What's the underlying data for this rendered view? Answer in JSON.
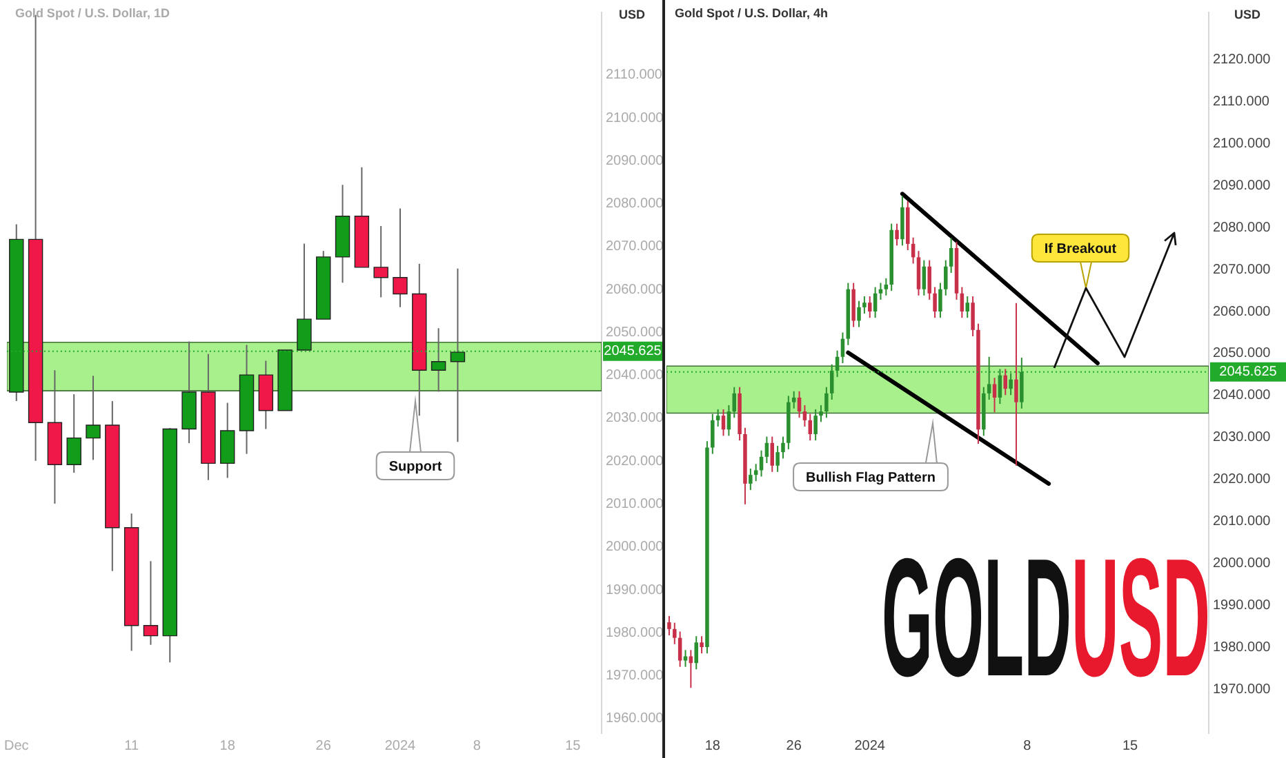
{
  "chart_data": [
    {
      "type": "candlestick",
      "title": "Gold Spot / U.S. Dollar, 1D",
      "ylabel": "USD",
      "categories": [
        "Dec",
        null,
        null,
        null,
        null,
        null,
        "11",
        null,
        null,
        null,
        null,
        "18",
        null,
        null,
        null,
        null,
        "26",
        null,
        null,
        null,
        "2024",
        null,
        null,
        null,
        "8",
        null,
        null,
        null,
        null,
        "15",
        null
      ],
      "ohlc": [
        [
          2036.1,
          2075.2,
          2034.0,
          2071.7
        ],
        [
          2071.7,
          2124.0,
          2020.1,
          2029.0
        ],
        [
          2029.0,
          2041.2,
          2010.1,
          2019.2
        ],
        [
          2019.2,
          2035.6,
          2017.3,
          2025.4
        ],
        [
          2025.4,
          2039.9,
          2020.3,
          2028.4
        ],
        [
          2028.4,
          2034.0,
          1994.4,
          2004.5
        ],
        [
          2004.5,
          2007.8,
          1975.8,
          1981.7
        ],
        [
          1981.7,
          1996.7,
          1977.2,
          1979.3
        ],
        [
          1979.3,
          2027.7,
          1973.1,
          2027.5
        ],
        [
          2027.5,
          2047.9,
          2024.2,
          2036.1
        ],
        [
          2036.1,
          2045.0,
          2015.6,
          2019.5
        ],
        [
          2019.5,
          2033.6,
          2016.1,
          2027.1
        ],
        [
          2027.1,
          2047.1,
          2021.7,
          2040.1
        ],
        [
          2040.1,
          2043.4,
          2027.5,
          2031.8
        ],
        [
          2031.8,
          2045.9,
          2031.8,
          2045.9
        ],
        [
          2045.9,
          2070.7,
          2045.9,
          2053.1
        ],
        [
          2053.1,
          2069.0,
          2053.1,
          2067.6
        ],
        [
          2067.6,
          2084.4,
          2061.6,
          2077.1
        ],
        [
          2077.1,
          2088.5,
          2065.2,
          2065.2
        ],
        [
          2065.2,
          2074.8,
          2058.2,
          2062.8
        ],
        [
          2062.8,
          2078.9,
          2055.9,
          2059.0
        ],
        [
          2059.0,
          2066.0,
          2030.6,
          2041.2
        ],
        [
          2041.2,
          2051.0,
          2036.2,
          2043.2
        ],
        [
          2043.2,
          2064.9,
          2024.5,
          2045.4
        ],
        null,
        null,
        null,
        null,
        null,
        null,
        null
      ],
      "colors": [
        "#119c19",
        "#f01848",
        "#f01848",
        "#119c19",
        "#119c19",
        "#f01848",
        "#f01848",
        "#f01848",
        "#119c19",
        "#119c19",
        "#f01848",
        "#119c19",
        "#119c19",
        "#f01848",
        "#119c19",
        "#119c19",
        "#119c19",
        "#119c19",
        "#f01848",
        "#f01848",
        "#f01848",
        "#f01848",
        "#119c19",
        "#119c19",
        null,
        null,
        null,
        null,
        null,
        null,
        null
      ],
      "ylim": [
        1956.6,
        2124.6
      ],
      "yticks": [
        {
          "value": 1960,
          "label": "1960.000"
        },
        {
          "value": 1970,
          "label": "1970.000"
        },
        {
          "value": 1980,
          "label": "1980.000"
        },
        {
          "value": 1990,
          "label": "1990.000"
        },
        {
          "value": 2000,
          "label": "2000.000"
        },
        {
          "value": 2010,
          "label": "2010.000"
        },
        {
          "value": 2020,
          "label": "2020.000"
        },
        {
          "value": 2030,
          "label": "2030.000"
        },
        {
          "value": 2040,
          "label": "2040.000"
        },
        {
          "value": 2050,
          "label": "2050.000"
        },
        {
          "value": 2060,
          "label": "2060.000"
        },
        {
          "value": 2070,
          "label": "2070.000"
        },
        {
          "value": 2080,
          "label": "2080.000"
        },
        {
          "value": 2090,
          "label": "2090.000"
        },
        {
          "value": 2100,
          "label": "2100.000"
        },
        {
          "value": 2110,
          "label": "2110.000"
        }
      ],
      "bands": [
        {
          "axis": "y",
          "from": 2036.4,
          "to": 2047.7,
          "color": "#a8f08c"
        }
      ],
      "ref_lines": [
        {
          "axis": "y",
          "value": 2045.625,
          "label": "2045.625",
          "color": "#22ab2a"
        }
      ],
      "annotations": [
        "Support"
      ],
      "grid": false,
      "legend": false
    },
    {
      "type": "candlestick",
      "title": "Gold Spot / U.S. Dollar, 4h",
      "ylabel": "USD",
      "categories": [
        null,
        null,
        null,
        null,
        null,
        null,
        null,
        null,
        "18",
        null,
        null,
        null,
        null,
        null,
        null,
        null,
        null,
        null,
        null,
        null,
        null,
        null,
        null,
        "26",
        null,
        null,
        null,
        null,
        null,
        null,
        null,
        null,
        null,
        null,
        null,
        null,
        null,
        "2024",
        null,
        null,
        null,
        null,
        null,
        null,
        null,
        null,
        null,
        null,
        null,
        null,
        null,
        null,
        null,
        null,
        null,
        null,
        null,
        null,
        null,
        null,
        null,
        null,
        null,
        null,
        null,
        null,
        "8",
        null,
        null,
        null,
        null,
        null,
        null,
        null,
        null,
        null,
        null,
        null,
        null,
        null,
        null,
        null,
        null,
        null,
        null,
        "15",
        null,
        null,
        null,
        null,
        null,
        null,
        null,
        null,
        null,
        null,
        null,
        null,
        null,
        null
      ],
      "ohlc": [
        [
          1986,
          1987.5,
          1982.9,
          1984.4
        ],
        [
          1984.4,
          1985.9,
          1980.8,
          1982.3
        ],
        [
          1982.3,
          1983.8,
          1975.4,
          1976.9
        ],
        [
          1976.9,
          1979.4,
          1975.4,
          1977.9
        ],
        [
          1977.9,
          1979.4,
          1970.4,
          1976.3
        ],
        [
          1976.3,
          1982.7,
          1974.8,
          1981.2
        ],
        [
          1981.2,
          1982.7,
          1978.6,
          1980.1
        ],
        [
          1980.1,
          2029.1,
          1978.6,
          2027.6
        ],
        [
          2027.6,
          2035.6,
          2026.1,
          2034.1
        ],
        [
          2034.1,
          2036.7,
          2032.6,
          2035.2
        ],
        [
          2035.2,
          2036.7,
          2030.4,
          2031.9
        ],
        [
          2031.9,
          2037.7,
          2030.4,
          2036.2
        ],
        [
          2036.2,
          2042.0,
          2034.7,
          2040.5
        ],
        [
          2040.5,
          2042.0,
          2029.3,
          2030.8
        ],
        [
          2030.8,
          2032.3,
          2014.1,
          2019.0
        ],
        [
          2019.0,
          2022.6,
          2017.5,
          2021.1
        ],
        [
          2021.1,
          2023.7,
          2019.6,
          2022.2
        ],
        [
          2022.2,
          2026.9,
          2020.7,
          2025.4
        ],
        [
          2025.4,
          2030.2,
          2023.9,
          2028.7
        ],
        [
          2028.7,
          2030.2,
          2021.8,
          2023.3
        ],
        [
          2023.3,
          2028.0,
          2021.8,
          2026.5
        ],
        [
          2026.5,
          2030.2,
          2025.0,
          2028.7
        ],
        [
          2028.7,
          2039.9,
          2027.2,
          2038.4
        ],
        [
          2038.4,
          2041.0,
          2036.9,
          2039.5
        ],
        [
          2039.5,
          2041.0,
          2034.7,
          2036.2
        ],
        [
          2036.2,
          2037.7,
          2032.6,
          2034.1
        ],
        [
          2034.1,
          2035.6,
          2029.3,
          2030.8
        ],
        [
          2030.8,
          2036.7,
          2029.3,
          2035.2
        ],
        [
          2035.2,
          2037.7,
          2033.7,
          2036.2
        ],
        [
          2036.2,
          2042.0,
          2034.7,
          2040.5
        ],
        [
          2040.5,
          2047.4,
          2039.0,
          2045.9
        ],
        [
          2045.9,
          2050.7,
          2044.4,
          2049.2
        ],
        [
          2049.2,
          2055.0,
          2047.7,
          2053.5
        ],
        [
          2053.5,
          2066.8,
          2052.0,
          2065.3
        ],
        [
          2065.3,
          2066.8,
          2056.3,
          2057.8
        ],
        [
          2057.8,
          2062.5,
          2056.3,
          2061.0
        ],
        [
          2061.0,
          2063.6,
          2059.5,
          2062.1
        ],
        [
          2062.1,
          2063.6,
          2058.5,
          2060.0
        ],
        [
          2060.0,
          2065.8,
          2058.5,
          2064.3
        ],
        [
          2064.3,
          2066.8,
          2062.8,
          2065.3
        ],
        [
          2065.3,
          2067.9,
          2063.8,
          2066.4
        ],
        [
          2066.4,
          2080.9,
          2064.9,
          2079.4
        ],
        [
          2079.4,
          2080.9,
          2075.7,
          2077.2
        ],
        [
          2077.2,
          2087.5,
          2075.7,
          2084.8
        ],
        [
          2084.8,
          2086.3,
          2074.6,
          2076.1
        ],
        [
          2076.1,
          2077.6,
          2071.4,
          2072.9
        ],
        [
          2072.9,
          2074.4,
          2063.8,
          2065.3
        ],
        [
          2065.3,
          2072.2,
          2063.8,
          2070.7
        ],
        [
          2070.7,
          2072.2,
          2062.8,
          2064.3
        ],
        [
          2064.3,
          2065.8,
          2058.5,
          2060.0
        ],
        [
          2060.0,
          2066.8,
          2058.5,
          2065.3
        ],
        [
          2065.3,
          2072.2,
          2063.8,
          2070.7
        ],
        [
          2070.7,
          2077.5,
          2069.2,
          2075.1
        ],
        [
          2075.1,
          2076.6,
          2062.8,
          2064.3
        ],
        [
          2064.3,
          2065.8,
          2058.5,
          2060.0
        ],
        [
          2060.0,
          2063.6,
          2058.5,
          2062.1
        ],
        [
          2062.1,
          2063.6,
          2054.1,
          2055.6
        ],
        [
          2055.6,
          2057.1,
          2028.5,
          2031.9
        ],
        [
          2031.9,
          2042.0,
          2030.4,
          2040.5
        ],
        [
          2040.5,
          2049.2,
          2039.0,
          2042.7
        ],
        [
          2042.7,
          2044.2,
          2036.0,
          2039.5
        ],
        [
          2039.5,
          2046.3,
          2038.0,
          2044.8
        ],
        [
          2044.8,
          2046.3,
          2040.1,
          2041.6
        ],
        [
          2041.6,
          2045.3,
          2040.1,
          2043.8
        ],
        [
          2043.8,
          2062.0,
          2023.3,
          2038.4
        ],
        [
          2038.4,
          2049.0,
          2036.9,
          2045.6
        ],
        null,
        null,
        null,
        null,
        null,
        null,
        null,
        null,
        null,
        null,
        null,
        null,
        null,
        null,
        null,
        null,
        null,
        null,
        null,
        null,
        null,
        null,
        null,
        null,
        null,
        null,
        null,
        null,
        null,
        null,
        null,
        null,
        null,
        null
      ],
      "colors": [
        "#c8304a",
        "#c8304a",
        "#c8304a",
        "#2a8f2f",
        "#c8304a",
        "#2a8f2f",
        "#c8304a",
        "#2a8f2f",
        "#2a8f2f",
        "#2a8f2f",
        "#c8304a",
        "#2a8f2f",
        "#2a8f2f",
        "#c8304a",
        "#c8304a",
        "#2a8f2f",
        "#2a8f2f",
        "#2a8f2f",
        "#2a8f2f",
        "#c8304a",
        "#2a8f2f",
        "#2a8f2f",
        "#2a8f2f",
        "#2a8f2f",
        "#c8304a",
        "#c8304a",
        "#c8304a",
        "#2a8f2f",
        "#2a8f2f",
        "#2a8f2f",
        "#2a8f2f",
        "#2a8f2f",
        "#2a8f2f",
        "#2a8f2f",
        "#c8304a",
        "#2a8f2f",
        "#2a8f2f",
        "#c8304a",
        "#2a8f2f",
        "#2a8f2f",
        "#2a8f2f",
        "#2a8f2f",
        "#c8304a",
        "#2a8f2f",
        "#c8304a",
        "#c8304a",
        "#c8304a",
        "#2a8f2f",
        "#c8304a",
        "#c8304a",
        "#2a8f2f",
        "#2a8f2f",
        "#2a8f2f",
        "#c8304a",
        "#c8304a",
        "#2a8f2f",
        "#c8304a",
        "#c8304a",
        "#2a8f2f",
        "#2a8f2f",
        "#c8304a",
        "#2a8f2f",
        "#c8304a",
        "#2a8f2f",
        "#c8304a",
        "#2a8f2f",
        null,
        null,
        null,
        null,
        null,
        null,
        null,
        null,
        null,
        null,
        null,
        null,
        null,
        null,
        null,
        null,
        null,
        null,
        null,
        null,
        null,
        null,
        null,
        null,
        null,
        null,
        null,
        null,
        null,
        null,
        null,
        null,
        null,
        null
      ],
      "ylim": [
        1959.6,
        2131.2
      ],
      "yticks": [
        {
          "value": 1970,
          "label": "1970.000"
        },
        {
          "value": 1980,
          "label": "1980.000"
        },
        {
          "value": 1990,
          "label": "1990.000"
        },
        {
          "value": 2000,
          "label": "2000.000"
        },
        {
          "value": 2010,
          "label": "2010.000"
        },
        {
          "value": 2020,
          "label": "2020.000"
        },
        {
          "value": 2030,
          "label": "2030.000"
        },
        {
          "value": 2040,
          "label": "2040.000"
        },
        {
          "value": 2050,
          "label": "2050.000"
        },
        {
          "value": 2060,
          "label": "2060.000"
        },
        {
          "value": 2070,
          "label": "2070.000"
        },
        {
          "value": 2080,
          "label": "2080.000"
        },
        {
          "value": 2090,
          "label": "2090.000"
        },
        {
          "value": 2100,
          "label": "2100.000"
        },
        {
          "value": 2110,
          "label": "2110.000"
        },
        {
          "value": 2120,
          "label": "2120.000"
        }
      ],
      "bands": [
        {
          "axis": "y",
          "from": 2035.8,
          "to": 2047.0,
          "color": "#a8f08c"
        }
      ],
      "ref_lines": [
        {
          "axis": "y",
          "value": 2045.625,
          "label": "2045.625",
          "color": "#22ab2a"
        }
      ],
      "series": [
        {
          "type": "line",
          "values": [
            null,
            null,
            null,
            null,
            null,
            null,
            null,
            null,
            null,
            null,
            null,
            null,
            null,
            null,
            null,
            null,
            null,
            null,
            null,
            null,
            null,
            null,
            null,
            null,
            null,
            null,
            null,
            null,
            null,
            null,
            null,
            null,
            null,
            null,
            null,
            null,
            null,
            null,
            null,
            null,
            null,
            null,
            null,
            2088.0,
            null,
            null,
            null,
            null,
            null,
            null,
            null,
            null,
            null,
            null,
            null,
            null,
            null,
            null,
            null,
            null,
            null,
            null,
            null,
            null,
            null,
            null,
            null,
            null,
            null,
            null,
            null,
            null,
            null,
            null,
            null,
            null,
            null,
            null,
            null,
            2047.7,
            null,
            null,
            null,
            null,
            null,
            null,
            null,
            null,
            null,
            null,
            null,
            null,
            null,
            null,
            null,
            null,
            null,
            null,
            null,
            null
          ],
          "color": "#000000"
        },
        {
          "type": "line",
          "values": [
            null,
            null,
            null,
            null,
            null,
            null,
            null,
            null,
            null,
            null,
            null,
            null,
            null,
            null,
            null,
            null,
            null,
            null,
            null,
            null,
            null,
            null,
            null,
            null,
            null,
            null,
            null,
            null,
            null,
            null,
            null,
            null,
            null,
            2050.2,
            null,
            null,
            null,
            null,
            null,
            null,
            null,
            null,
            null,
            null,
            null,
            null,
            null,
            null,
            null,
            null,
            null,
            null,
            null,
            null,
            null,
            null,
            null,
            null,
            null,
            null,
            null,
            null,
            null,
            null,
            null,
            null,
            null,
            null,
            null,
            null,
            2019.0,
            null,
            null,
            null,
            null,
            null,
            null,
            null,
            null,
            null,
            null,
            null,
            null,
            null,
            null,
            null,
            null,
            null,
            null,
            null,
            null,
            null,
            null,
            null,
            null,
            null,
            null,
            null,
            null,
            null
          ],
          "color": "#000000"
        }
      ],
      "annotations": [
        "Bullish Flag Pattern",
        "If Breakout",
        "GOLD",
        "USD"
      ],
      "grid": false,
      "legend": false
    }
  ]
}
